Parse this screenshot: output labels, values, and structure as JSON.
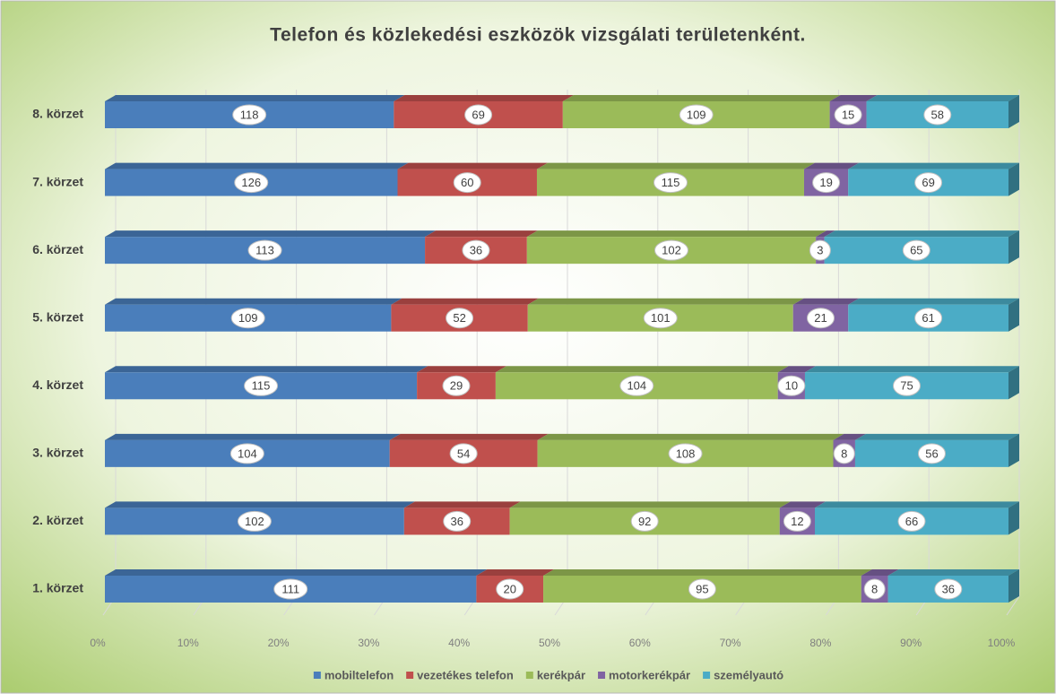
{
  "chart_data": {
    "type": "stacked_percent_bar_horizontal",
    "title": "Telefon és közlekedési eszközök vizsgálati területenként.",
    "categories": [
      "1. körzet",
      "2. körzet",
      "3. körzet",
      "4. körzet",
      "5. körzet",
      "6. körzet",
      "7. körzet",
      "8. körzet"
    ],
    "series": [
      {
        "name": "mobiltelefon",
        "color": "#4a7ebb",
        "values": [
          111,
          102,
          104,
          115,
          109,
          113,
          126,
          118
        ]
      },
      {
        "name": "vezetékes telefon",
        "color": "#c0504d",
        "values": [
          20,
          36,
          54,
          29,
          52,
          36,
          60,
          69
        ]
      },
      {
        "name": "kerékpár",
        "color": "#9bbb59",
        "values": [
          95,
          92,
          108,
          104,
          101,
          102,
          115,
          109
        ]
      },
      {
        "name": "motorkerékpár",
        "color": "#8064a2",
        "values": [
          8,
          12,
          8,
          10,
          21,
          3,
          19,
          15
        ]
      },
      {
        "name": "személyautó",
        "color": "#4bacc6",
        "values": [
          36,
          66,
          56,
          75,
          61,
          65,
          69,
          58
        ]
      }
    ],
    "xlim": [
      0,
      100
    ],
    "xticks": [
      {
        "value": 0,
        "label": "0%"
      },
      {
        "value": 10,
        "label": "10%"
      },
      {
        "value": 20,
        "label": "20%"
      },
      {
        "value": 30,
        "label": "30%"
      },
      {
        "value": 40,
        "label": "40%"
      },
      {
        "value": 50,
        "label": "50%"
      },
      {
        "value": 60,
        "label": "60%"
      },
      {
        "value": 70,
        "label": "70%"
      },
      {
        "value": 80,
        "label": "80%"
      },
      {
        "value": 90,
        "label": "90%"
      },
      {
        "value": 100,
        "label": "100%"
      }
    ],
    "grid": true,
    "legend": "bottom"
  }
}
